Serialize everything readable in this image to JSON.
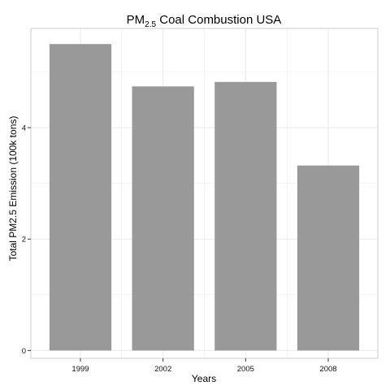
{
  "chart_data": {
    "type": "bar",
    "title_prefix": "PM",
    "title_subscript": "2.5",
    "title_suffix": " Coal Combustion USA",
    "xlabel": "Years",
    "ylabel": "Total PM2.5 Emission (100k tons)",
    "categories": [
      "1999",
      "2002",
      "2005",
      "2008"
    ],
    "values": [
      5.5,
      4.74,
      4.82,
      3.32
    ],
    "yticks": [
      0,
      2,
      4
    ],
    "ylim": [
      -0.14,
      5.78
    ],
    "grid": true,
    "legend": "none",
    "bar_color": "#999999",
    "grid_color": "#ebebeb",
    "frame_color": "#cccccc"
  }
}
